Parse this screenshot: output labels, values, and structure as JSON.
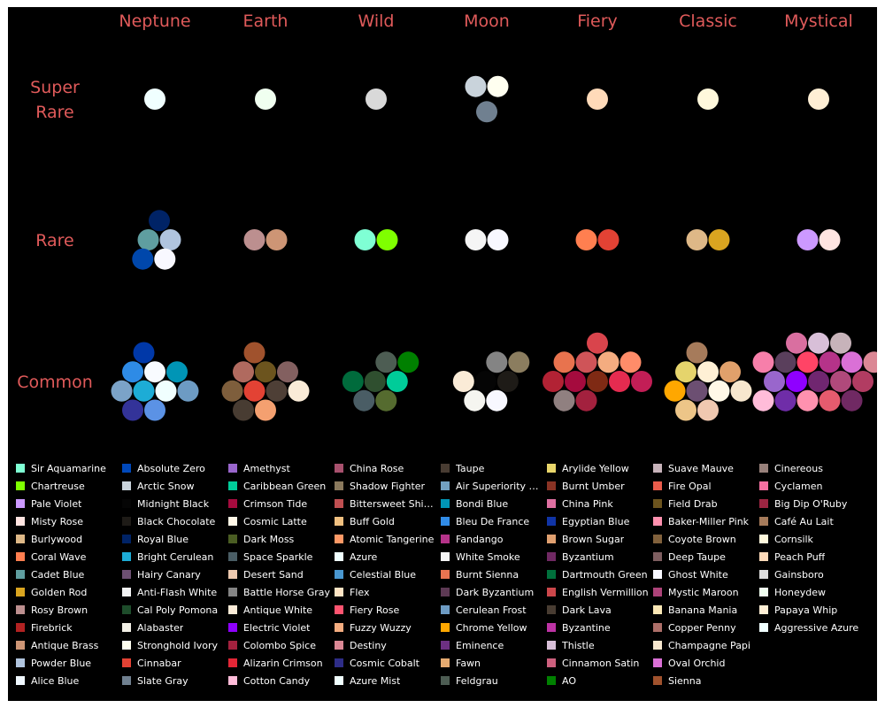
{
  "chart_data": {
    "type": "packed-bubble-grid",
    "title": "",
    "columns": [
      "Neptune",
      "Earth",
      "Wild",
      "Moon",
      "Fiery",
      "Classic",
      "Mystical"
    ],
    "rows": [
      {
        "label": "Super Rare",
        "cells": [
          {
            "column": "Neptune",
            "colors": [
              "#F0FFFF"
            ]
          },
          {
            "column": "Earth",
            "colors": [
              "#F0FFF0"
            ]
          },
          {
            "column": "Wild",
            "colors": [
              "#D9D9D9"
            ]
          },
          {
            "column": "Moon",
            "colors": [
              "#C9D3DB",
              "#FFFFF0",
              "#708090"
            ]
          },
          {
            "column": "Fiery",
            "colors": [
              "#FFDAB9"
            ]
          },
          {
            "column": "Classic",
            "colors": [
              "#FFF8DC"
            ]
          },
          {
            "column": "Mystical",
            "colors": [
              "#FFEFD5"
            ]
          }
        ]
      },
      {
        "label": "Rare",
        "cells": [
          {
            "column": "Neptune",
            "colors": [
              "#002366",
              "#5F9EA0",
              "#B0C4DE",
              "#0047AB",
              "#F8F8FF"
            ]
          },
          {
            "column": "Earth",
            "colors": [
              "#BC8F8F",
              "#CD9575"
            ]
          },
          {
            "column": "Wild",
            "colors": [
              "#7FFFD4",
              "#7FFF00"
            ]
          },
          {
            "column": "Moon",
            "colors": [
              "#F5F5F5",
              "#F8F8FF"
            ]
          },
          {
            "column": "Fiery",
            "colors": [
              "#FF7F50",
              "#E34234"
            ]
          },
          {
            "column": "Classic",
            "colors": [
              "#DEB887",
              "#DAA520"
            ]
          },
          {
            "column": "Mystical",
            "colors": [
              "#CC99FF",
              "#FFE4E1"
            ]
          }
        ]
      },
      {
        "label": "Common",
        "cells": [
          {
            "column": "Neptune",
            "colors": [
              "#0038A8",
              "#2E8BE6",
              "#F8FBFF",
              "#0095B6",
              "#7BA3C8",
              "#1DACD6",
              "#F0FFFF",
              "#6D9BC3",
              "#333399",
              "#5B92E5"
            ]
          },
          {
            "column": "Earth",
            "colors": [
              "#A0522D",
              "#B06A5F",
              "#6C541E",
              "#836060",
              "#7E5E3C",
              "#E34234",
              "#4E3F36",
              "#FAEBD7",
              "#483C32",
              "#F4A070"
            ]
          },
          {
            "column": "Wild",
            "colors": [
              "#4D5D53",
              "#008000",
              "#006B3C",
              "#2F4F2F",
              "#00CC99",
              "#4A5D65",
              "#556B2F"
            ]
          },
          {
            "column": "Moon",
            "colors": [
              "#848484",
              "#8B7D5F",
              "#FAEBD7",
              "#050505",
              "#1E1B17",
              "#F5F5F0",
              "#F8F8FF"
            ]
          },
          {
            "column": "Fiery",
            "colors": [
              "#D9444C",
              "#E8734E",
              "#CF5458",
              "#F4AC80",
              "#FF8C69",
              "#B22234",
              "#A50B3E",
              "#7F2A14",
              "#E52B50",
              "#C21E56",
              "#908080",
              "#A3213E"
            ]
          },
          {
            "column": "Classic",
            "colors": [
              "#A67B5B",
              "#E5D46C",
              "#FFF0D5",
              "#E0A06B",
              "#FFA700",
              "#6C4F72",
              "#FFF8E7",
              "#F7E7CE",
              "#EDC588",
              "#F0C8B0"
            ]
          },
          {
            "column": "Mystical",
            "colors": [
              "#D96FA0",
              "#D8BFD8",
              "#C7B3BA",
              "#F77FAA",
              "#5A3F5C",
              "#FF4466",
              "#B53389",
              "#DA70D6",
              "#DB8895",
              "#9966CC",
              "#8F00FF",
              "#702670",
              "#B0497B",
              "#B23C62",
              "#FFBCD9",
              "#6F2DA8",
              "#FF91AF",
              "#E55B6E",
              "#702963"
            ]
          }
        ]
      }
    ],
    "legend": [
      {
        "name": "Sir Aquamarine",
        "color": "#7FFFD4"
      },
      {
        "name": "Chartreuse",
        "color": "#7FFF00"
      },
      {
        "name": "Pale Violet",
        "color": "#CC99FF"
      },
      {
        "name": "Misty Rose",
        "color": "#FFE4E1"
      },
      {
        "name": "Burlywood",
        "color": "#DEB887"
      },
      {
        "name": "Coral Wave",
        "color": "#FF7F50"
      },
      {
        "name": "Cadet Blue",
        "color": "#5F9EA0"
      },
      {
        "name": "Golden Rod",
        "color": "#DAA520"
      },
      {
        "name": "Rosy Brown",
        "color": "#BC8F8F"
      },
      {
        "name": "Firebrick",
        "color": "#B22222"
      },
      {
        "name": "Antique Brass",
        "color": "#CD9575"
      },
      {
        "name": "Powder Blue",
        "color": "#B0C4DE"
      },
      {
        "name": "Alice Blue",
        "color": "#F0F8FF"
      },
      {
        "name": "Absolute Zero",
        "color": "#0048BA"
      },
      {
        "name": "Arctic Snow",
        "color": "#C9D3DB"
      },
      {
        "name": "Midnight Black",
        "color": "#050505"
      },
      {
        "name": "Black Chocolate",
        "color": "#1E1B17"
      },
      {
        "name": "Royal Blue",
        "color": "#002366"
      },
      {
        "name": "Bright Cerulean",
        "color": "#1DACD6"
      },
      {
        "name": "Hairy Canary",
        "color": "#6C4F72"
      },
      {
        "name": "Anti-Flash White",
        "color": "#F2F3F4"
      },
      {
        "name": "Cal Poly Pomona",
        "color": "#1E4D2B"
      },
      {
        "name": "Alabaster",
        "color": "#F2F0E6"
      },
      {
        "name": "Stronghold Ivory",
        "color": "#FFFFF0"
      },
      {
        "name": "Cinnabar",
        "color": "#E34234"
      },
      {
        "name": "Slate Gray",
        "color": "#708090"
      },
      {
        "name": "Amethyst",
        "color": "#9966CC"
      },
      {
        "name": "Caribbean Green",
        "color": "#00CC99"
      },
      {
        "name": "Crimson Tide",
        "color": "#A50B3E"
      },
      {
        "name": "Cosmic Latte",
        "color": "#FFF8E7"
      },
      {
        "name": "Dark Moss",
        "color": "#4A5D23"
      },
      {
        "name": "Space Sparkle",
        "color": "#4A5D65"
      },
      {
        "name": "Desert Sand",
        "color": "#EDC9AF"
      },
      {
        "name": "Battle Horse Gray",
        "color": "#848484"
      },
      {
        "name": "Antique White",
        "color": "#FAEBD7"
      },
      {
        "name": "Electric Violet",
        "color": "#8F00FF"
      },
      {
        "name": "Colombo Spice",
        "color": "#A3213E"
      },
      {
        "name": "Alizarin Crimson",
        "color": "#E32636"
      },
      {
        "name": "Cotton Candy",
        "color": "#FFBCD9"
      },
      {
        "name": "China Rose",
        "color": "#A8516E"
      },
      {
        "name": "Shadow Fighter",
        "color": "#8A795D"
      },
      {
        "name": "Bittersweet Shim...",
        "color": "#BF4F51"
      },
      {
        "name": "Buff Gold",
        "color": "#F0C080"
      },
      {
        "name": "Atomic Tangerine",
        "color": "#FF9966"
      },
      {
        "name": "Azure",
        "color": "#F0FFFF"
      },
      {
        "name": "Celestial Blue",
        "color": "#4997D0"
      },
      {
        "name": "Flex",
        "color": "#FFE4C4"
      },
      {
        "name": "Fiery Rose",
        "color": "#FF5470"
      },
      {
        "name": "Fuzzy Wuzzy",
        "color": "#F4AC80"
      },
      {
        "name": "Destiny",
        "color": "#DB8895"
      },
      {
        "name": "Cosmic Cobalt",
        "color": "#2E2D88"
      },
      {
        "name": "Azure Mist",
        "color": "#F0FFFF"
      },
      {
        "name": "Taupe",
        "color": "#483C32"
      },
      {
        "name": "Air Superiority Bl...",
        "color": "#72A0C1"
      },
      {
        "name": "Bondi Blue",
        "color": "#0095B6"
      },
      {
        "name": "Bleu De France",
        "color": "#318CE7"
      },
      {
        "name": "Fandango",
        "color": "#B53389"
      },
      {
        "name": "White Smoke",
        "color": "#F5F5F5"
      },
      {
        "name": "Burnt Sienna",
        "color": "#E97451"
      },
      {
        "name": "Dark Byzantium",
        "color": "#5D3954"
      },
      {
        "name": "Cerulean Frost",
        "color": "#6D9BC3"
      },
      {
        "name": "Chrome Yellow",
        "color": "#FFA700"
      },
      {
        "name": "Eminence",
        "color": "#6C3082"
      },
      {
        "name": "Fawn",
        "color": "#E5AA70"
      },
      {
        "name": "Feldgrau",
        "color": "#4D5D53"
      },
      {
        "name": "Arylide Yellow",
        "color": "#E9D66B"
      },
      {
        "name": "Burnt Umber",
        "color": "#8A3324"
      },
      {
        "name": "China Pink",
        "color": "#DE6FA1"
      },
      {
        "name": "Egyptian Blue",
        "color": "#1034A6"
      },
      {
        "name": "Brown Sugar",
        "color": "#E0A070"
      },
      {
        "name": "Byzantium",
        "color": "#702963"
      },
      {
        "name": "Dartmouth Green",
        "color": "#00703C"
      },
      {
        "name": "English Vermillion",
        "color": "#CC474B"
      },
      {
        "name": "Dark Lava",
        "color": "#483C32"
      },
      {
        "name": "Byzantine",
        "color": "#BD33A4"
      },
      {
        "name": "Thistle",
        "color": "#D8BFD8"
      },
      {
        "name": "Cinnamon Satin",
        "color": "#CD607E"
      },
      {
        "name": "AO",
        "color": "#008000"
      },
      {
        "name": "Suave Mauve",
        "color": "#C7B3BA"
      },
      {
        "name": "Fire Opal",
        "color": "#E95C4B"
      },
      {
        "name": "Field Drab",
        "color": "#6C541E"
      },
      {
        "name": "Baker-Miller Pink",
        "color": "#FF91AF"
      },
      {
        "name": "Coyote Brown",
        "color": "#81613C"
      },
      {
        "name": "Deep Taupe",
        "color": "#7E5E60"
      },
      {
        "name": "Ghost White",
        "color": "#F8F8FF"
      },
      {
        "name": "Mystic Maroon",
        "color": "#AD4379"
      },
      {
        "name": "Banana Mania",
        "color": "#FAE7B5"
      },
      {
        "name": "Copper Penny",
        "color": "#AD6F69"
      },
      {
        "name": "Champagne Papi",
        "color": "#F7E7CE"
      },
      {
        "name": "Oval Orchid",
        "color": "#DA70D6"
      },
      {
        "name": "Sienna",
        "color": "#A0522D"
      },
      {
        "name": "Cinereous",
        "color": "#98817B"
      },
      {
        "name": "Cyclamen",
        "color": "#F56FA1"
      },
      {
        "name": "Big Dip O'Ruby",
        "color": "#9C2542"
      },
      {
        "name": "Café Au Lait",
        "color": "#A67B5B"
      },
      {
        "name": "Cornsilk",
        "color": "#FFF8DC"
      },
      {
        "name": "Peach Puff",
        "color": "#FFDAB9"
      },
      {
        "name": "Gainsboro",
        "color": "#DCDCDC"
      },
      {
        "name": "Honeydew",
        "color": "#F0FFF0"
      },
      {
        "name": "Papaya Whip",
        "color": "#FFEFD5"
      },
      {
        "name": "Aggressive Azure",
        "color": "#F0FFFF"
      }
    ],
    "colors": {
      "background": "#000000",
      "header_text": "#E05A5A",
      "legend_text": "#FFFFFF"
    }
  }
}
